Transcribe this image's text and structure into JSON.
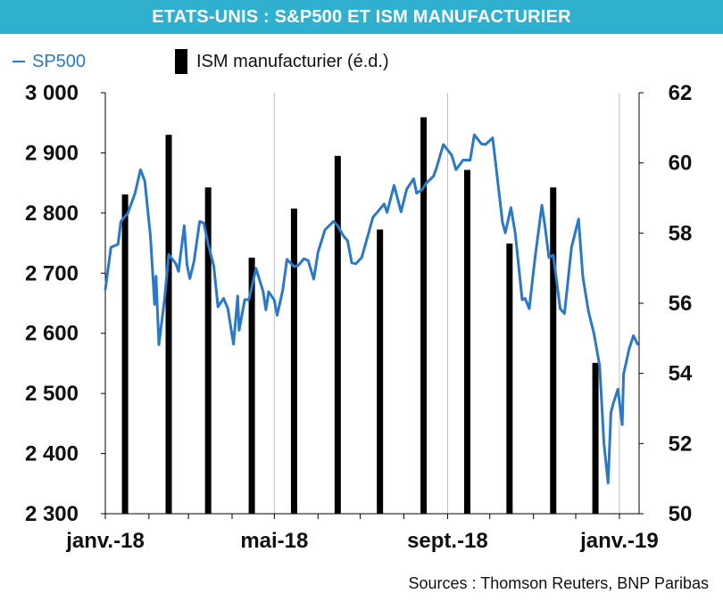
{
  "title": "ETATS-UNIS  : S&P500 ET ISM MANUFACTURIER",
  "legend": {
    "sp500": "SP500",
    "ism": "ISM manufacturier (é.d.)"
  },
  "source": "Sources : Thomson Reuters, BNP Paribas",
  "colors": {
    "header": "#2fb0ce",
    "sp500_line": "#2a78c8",
    "ism_bar": "#000000",
    "gridline": "#bfbfbf"
  },
  "chart_data": {
    "type": "bar+line",
    "x_axis": {
      "range": [
        "2018-01-01",
        "2019-01-15"
      ],
      "tick_labels": [
        "janv.-18",
        "mai-18",
        "sept.-18",
        "janv.-19"
      ]
    },
    "y_left": {
      "min": 2300,
      "max": 3000,
      "ticks": [
        2300,
        2400,
        2500,
        2600,
        2700,
        2800,
        2900,
        3000
      ],
      "tick_labels": [
        "2 300",
        "2 400",
        "2 500",
        "2 600",
        "2 700",
        "2 800",
        "2 900",
        "3 000"
      ]
    },
    "y_right": {
      "min": 50,
      "max": 62,
      "ticks": [
        50,
        52,
        54,
        56,
        58,
        60,
        62
      ],
      "tick_labels": [
        "50",
        "52",
        "54",
        "56",
        "58",
        "60",
        "62"
      ]
    },
    "grid": "vertical at janv.-18, mai-18, sept.-18, janv.-19",
    "ism_bars": [
      {
        "date": "2018-01-15",
        "value": 59.1
      },
      {
        "date": "2018-02-15",
        "value": 60.8
      },
      {
        "date": "2018-03-15",
        "value": 59.3
      },
      {
        "date": "2018-04-15",
        "value": 57.3
      },
      {
        "date": "2018-05-15",
        "value": 58.7
      },
      {
        "date": "2018-06-15",
        "value": 60.2
      },
      {
        "date": "2018-07-15",
        "value": 58.1
      },
      {
        "date": "2018-08-15",
        "value": 61.3
      },
      {
        "date": "2018-09-15",
        "value": 59.8
      },
      {
        "date": "2018-10-15",
        "value": 57.7
      },
      {
        "date": "2018-11-15",
        "value": 59.3
      },
      {
        "date": "2018-12-15",
        "value": 54.3
      }
    ],
    "sp500": [
      [
        "2018-01-01",
        2673
      ],
      [
        "2018-01-05",
        2743
      ],
      [
        "2018-01-10",
        2748
      ],
      [
        "2018-01-12",
        2786
      ],
      [
        "2018-01-17",
        2800
      ],
      [
        "2018-01-22",
        2832
      ],
      [
        "2018-01-26",
        2872
      ],
      [
        "2018-01-29",
        2853
      ],
      [
        "2018-02-02",
        2762
      ],
      [
        "2018-02-05",
        2648
      ],
      [
        "2018-02-06",
        2695
      ],
      [
        "2018-02-08",
        2581
      ],
      [
        "2018-02-12",
        2656
      ],
      [
        "2018-02-15",
        2731
      ],
      [
        "2018-02-20",
        2716
      ],
      [
        "2018-02-22",
        2703
      ],
      [
        "2018-02-26",
        2779
      ],
      [
        "2018-02-28",
        2714
      ],
      [
        "2018-03-02",
        2691
      ],
      [
        "2018-03-05",
        2720
      ],
      [
        "2018-03-09",
        2786
      ],
      [
        "2018-03-12",
        2783
      ],
      [
        "2018-03-15",
        2748
      ],
      [
        "2018-03-19",
        2712
      ],
      [
        "2018-03-22",
        2644
      ],
      [
        "2018-03-26",
        2658
      ],
      [
        "2018-03-29",
        2641
      ],
      [
        "2018-04-02",
        2582
      ],
      [
        "2018-04-05",
        2662
      ],
      [
        "2018-04-06",
        2605
      ],
      [
        "2018-04-10",
        2656
      ],
      [
        "2018-04-13",
        2656
      ],
      [
        "2018-04-18",
        2708
      ],
      [
        "2018-04-23",
        2670
      ],
      [
        "2018-04-25",
        2639
      ],
      [
        "2018-04-27",
        2669
      ],
      [
        "2018-05-01",
        2655
      ],
      [
        "2018-05-03",
        2630
      ],
      [
        "2018-05-07",
        2672
      ],
      [
        "2018-05-10",
        2723
      ],
      [
        "2018-05-15",
        2711
      ],
      [
        "2018-05-18",
        2713
      ],
      [
        "2018-05-22",
        2724
      ],
      [
        "2018-05-25",
        2721
      ],
      [
        "2018-05-29",
        2690
      ],
      [
        "2018-06-01",
        2735
      ],
      [
        "2018-06-06",
        2772
      ],
      [
        "2018-06-12",
        2786
      ],
      [
        "2018-06-15",
        2779
      ],
      [
        "2018-06-19",
        2762
      ],
      [
        "2018-06-22",
        2754
      ],
      [
        "2018-06-25",
        2717
      ],
      [
        "2018-06-28",
        2716
      ],
      [
        "2018-07-02",
        2726
      ],
      [
        "2018-07-06",
        2759
      ],
      [
        "2018-07-10",
        2793
      ],
      [
        "2018-07-13",
        2801
      ],
      [
        "2018-07-18",
        2815
      ],
      [
        "2018-07-20",
        2801
      ],
      [
        "2018-07-25",
        2846
      ],
      [
        "2018-07-30",
        2802
      ],
      [
        "2018-08-03",
        2840
      ],
      [
        "2018-08-08",
        2857
      ],
      [
        "2018-08-10",
        2833
      ],
      [
        "2018-08-14",
        2839
      ],
      [
        "2018-08-17",
        2850
      ],
      [
        "2018-08-22",
        2861
      ],
      [
        "2018-08-24",
        2874
      ],
      [
        "2018-08-29",
        2914
      ],
      [
        "2018-09-04",
        2896
      ],
      [
        "2018-09-07",
        2872
      ],
      [
        "2018-09-12",
        2888
      ],
      [
        "2018-09-17",
        2888
      ],
      [
        "2018-09-20",
        2930
      ],
      [
        "2018-09-25",
        2915
      ],
      [
        "2018-09-28",
        2914
      ],
      [
        "2018-10-03",
        2925
      ],
      [
        "2018-10-05",
        2885
      ],
      [
        "2018-10-10",
        2785
      ],
      [
        "2018-10-12",
        2767
      ],
      [
        "2018-10-16",
        2809
      ],
      [
        "2018-10-19",
        2767
      ],
      [
        "2018-10-24",
        2656
      ],
      [
        "2018-10-26",
        2658
      ],
      [
        "2018-10-29",
        2641
      ],
      [
        "2018-11-02",
        2723
      ],
      [
        "2018-11-07",
        2813
      ],
      [
        "2018-11-09",
        2781
      ],
      [
        "2018-11-12",
        2726
      ],
      [
        "2018-11-15",
        2730
      ],
      [
        "2018-11-20",
        2641
      ],
      [
        "2018-11-23",
        2633
      ],
      [
        "2018-11-28",
        2743
      ],
      [
        "2018-12-03",
        2790
      ],
      [
        "2018-12-06",
        2695
      ],
      [
        "2018-12-10",
        2637
      ],
      [
        "2018-12-14",
        2599
      ],
      [
        "2018-12-18",
        2546
      ],
      [
        "2018-12-21",
        2417
      ],
      [
        "2018-12-24",
        2351
      ],
      [
        "2018-12-26",
        2468
      ],
      [
        "2018-12-28",
        2486
      ],
      [
        "2018-12-31",
        2507
      ],
      [
        "2019-01-03",
        2448
      ],
      [
        "2019-01-04",
        2532
      ],
      [
        "2019-01-08",
        2575
      ],
      [
        "2019-01-11",
        2596
      ],
      [
        "2019-01-14",
        2582
      ]
    ]
  }
}
